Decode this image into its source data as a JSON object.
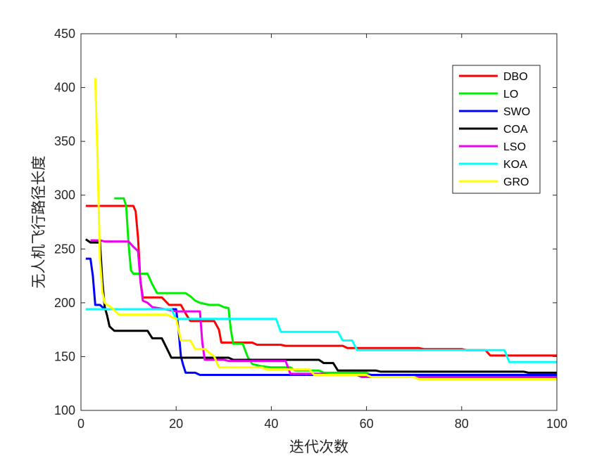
{
  "chart_data": {
    "type": "line",
    "title": "",
    "xlabel": "迭代次数",
    "ylabel": "无人机飞行路径长度",
    "xlim": [
      0,
      100
    ],
    "ylim": [
      100,
      450
    ],
    "xticks": [
      "0",
      "20",
      "40",
      "60",
      "80",
      "100"
    ],
    "yticks": [
      "100",
      "150",
      "200",
      "250",
      "300",
      "350",
      "400",
      "450"
    ],
    "legend_position": "top-right",
    "series": [
      {
        "name": "DBO",
        "color": "#ff0000",
        "x": [
          1,
          11,
          11.5,
          12,
          12.5,
          13,
          17,
          18.5,
          21,
          22,
          23,
          28,
          29,
          29.5,
          30,
          36,
          37,
          42,
          43,
          50,
          51,
          55,
          56,
          71,
          72,
          80,
          81,
          85,
          86,
          100
        ],
        "y": [
          290,
          290,
          285,
          260,
          220,
          205,
          205,
          198,
          198,
          190,
          183,
          183,
          175,
          163,
          163,
          163,
          161,
          161,
          160,
          160,
          160,
          160,
          158,
          158,
          157,
          157,
          156,
          156,
          151,
          151
        ]
      },
      {
        "name": "LO",
        "color": "#00ee00",
        "x": [
          7,
          9,
          9.5,
          10,
          10.5,
          11,
          14,
          15,
          16,
          22,
          23,
          24,
          25,
          27,
          29,
          30,
          31,
          31.5,
          32,
          34,
          35,
          36,
          37,
          38,
          40,
          44,
          45,
          50,
          51,
          60,
          61,
          100
        ],
        "y": [
          297,
          297,
          290,
          255,
          230,
          227,
          227,
          217,
          209,
          209,
          206,
          202,
          200,
          198,
          198,
          196,
          195,
          175,
          162,
          162,
          150,
          143,
          142,
          141,
          140,
          140,
          137,
          137,
          135,
          135,
          133,
          133
        ]
      },
      {
        "name": "SWO",
        "color": "#0000ff",
        "x": [
          1,
          2,
          2.5,
          3,
          4,
          5,
          20,
          20.5,
          21,
          21.5,
          22,
          24,
          25,
          100
        ],
        "y": [
          241,
          241,
          225,
          198,
          198,
          194,
          194,
          175,
          150,
          142,
          135,
          135,
          133,
          133
        ]
      },
      {
        "name": "COA",
        "color": "#000000",
        "x": [
          1,
          2,
          4,
          4.5,
          5,
          5.5,
          6,
          7,
          14,
          15,
          17,
          18,
          19,
          31,
          32,
          50,
          51,
          52,
          53,
          54,
          62,
          63,
          93,
          94,
          100
        ],
        "y": [
          259,
          256,
          256,
          220,
          196,
          188,
          178,
          174,
          174,
          167,
          167,
          158,
          149,
          149,
          147,
          147,
          144,
          144,
          144,
          137,
          137,
          136,
          136,
          135,
          135
        ]
      },
      {
        "name": "LSO",
        "color": "#ee00ee",
        "x": [
          2,
          4,
          5,
          10,
          11,
          12,
          12.5,
          13,
          14,
          15,
          19,
          20,
          25,
          25.5,
          26,
          30,
          31,
          43,
          44,
          51,
          52,
          58,
          59,
          100
        ],
        "y": [
          258,
          258,
          257,
          257,
          252,
          248,
          220,
          202,
          200,
          196,
          193,
          192,
          192,
          163,
          147,
          147,
          146,
          146,
          134,
          134,
          133,
          133,
          131,
          131
        ]
      },
      {
        "name": "KOA",
        "color": "#00ffff",
        "x": [
          1,
          19,
          20,
          41,
          42,
          54,
          55,
          57,
          58,
          89,
          90,
          100
        ],
        "y": [
          194,
          194,
          185,
          185,
          173,
          173,
          165,
          165,
          156,
          156,
          145,
          145
        ]
      },
      {
        "name": "GRO",
        "color": "#ffff00",
        "x": [
          3,
          3.5,
          4,
          4.5,
          5,
          5.5,
          6,
          7,
          8,
          18,
          20,
          20.5,
          21,
          23,
          24,
          26,
          28,
          29,
          30,
          38,
          39,
          48,
          49,
          60,
          61,
          70,
          71,
          100
        ],
        "y": [
          409,
          330,
          240,
          210,
          200,
          198,
          197,
          193,
          189,
          189,
          185,
          175,
          165,
          165,
          157,
          157,
          150,
          140,
          140,
          140,
          138,
          138,
          133,
          133,
          131,
          131,
          129,
          129
        ]
      }
    ]
  }
}
